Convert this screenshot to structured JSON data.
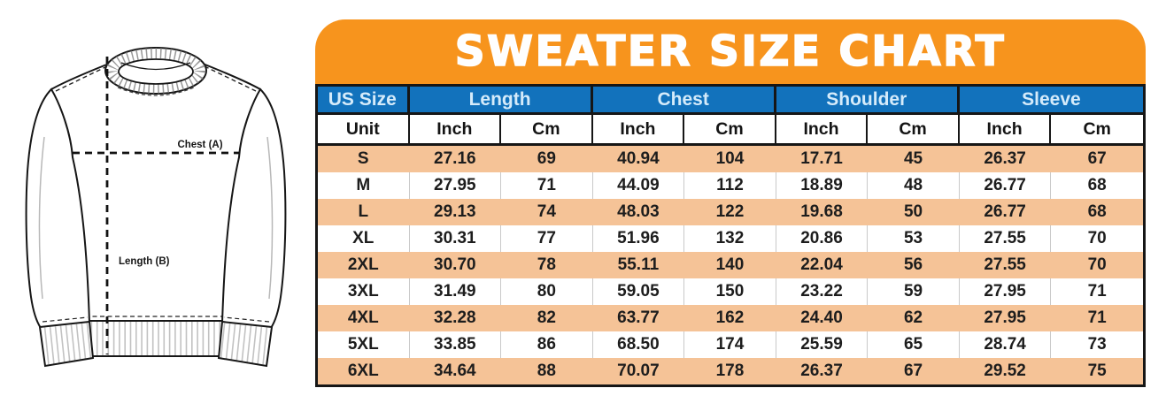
{
  "title": "SWEATER SIZE CHART",
  "diagram": {
    "chest_label": "Chest (A)",
    "length_label": "Length (B)"
  },
  "colors": {
    "banner_orange": "#F7941D",
    "header_blue": "#1272BC",
    "row_peach": "#F5C397",
    "header_text": "#D5EBFA",
    "border_black": "#161616"
  },
  "chart_data": {
    "type": "table",
    "title": "SWEATER SIZE CHART",
    "group_headers": [
      {
        "label": "US Size",
        "span": 1
      },
      {
        "label": "Length",
        "span": 2
      },
      {
        "label": "Chest",
        "span": 2
      },
      {
        "label": "Shoulder",
        "span": 2
      },
      {
        "label": "Sleeve",
        "span": 2
      }
    ],
    "unit_row": [
      "Unit",
      "Inch",
      "Cm",
      "Inch",
      "Cm",
      "Inch",
      "Cm",
      "Inch",
      "Cm"
    ],
    "rows": [
      [
        "S",
        "27.16",
        "69",
        "40.94",
        "104",
        "17.71",
        "45",
        "26.37",
        "67"
      ],
      [
        "M",
        "27.95",
        "71",
        "44.09",
        "112",
        "18.89",
        "48",
        "26.77",
        "68"
      ],
      [
        "L",
        "29.13",
        "74",
        "48.03",
        "122",
        "19.68",
        "50",
        "26.77",
        "68"
      ],
      [
        "XL",
        "30.31",
        "77",
        "51.96",
        "132",
        "20.86",
        "53",
        "27.55",
        "70"
      ],
      [
        "2XL",
        "30.70",
        "78",
        "55.11",
        "140",
        "22.04",
        "56",
        "27.55",
        "70"
      ],
      [
        "3XL",
        "31.49",
        "80",
        "59.05",
        "150",
        "23.22",
        "59",
        "27.95",
        "71"
      ],
      [
        "4XL",
        "32.28",
        "82",
        "63.77",
        "162",
        "24.40",
        "62",
        "27.95",
        "71"
      ],
      [
        "5XL",
        "33.85",
        "86",
        "68.50",
        "174",
        "25.59",
        "65",
        "28.74",
        "73"
      ],
      [
        "6XL",
        "34.64",
        "88",
        "70.07",
        "178",
        "26.37",
        "67",
        "29.52",
        "75"
      ]
    ]
  }
}
